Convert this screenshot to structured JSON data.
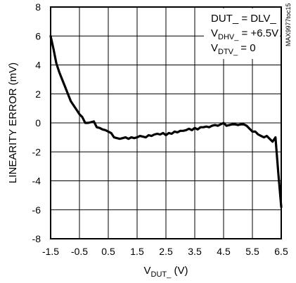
{
  "chart_data": {
    "type": "line",
    "xlabel": {
      "main": "V",
      "sub": "DUT_",
      "unit": " (V)"
    },
    "ylabel": "LINEARITY ERROR (mV)",
    "xlim": [
      -1.5,
      6.5
    ],
    "ylim": [
      -8,
      8
    ],
    "x_ticks": [
      "-1.5",
      "-0.5",
      "0.5",
      "1.5",
      "2.5",
      "3.5",
      "4.5",
      "5.5",
      "6.5"
    ],
    "y_ticks": [
      "8",
      "6",
      "4",
      "2",
      "0",
      "-2",
      "-4",
      "-6",
      "-8"
    ],
    "grid": true,
    "annotations": [
      {
        "main": "DUT_ = DLV_",
        "sub": "",
        "rest": ""
      },
      {
        "main": "V",
        "sub": "DHV_",
        "rest": " = +6.5V"
      },
      {
        "main": "V",
        "sub": "DTV_",
        "rest": " = 0"
      }
    ],
    "figure_id": "MAX9977toc15",
    "series": [
      {
        "x": [
          -1.5,
          -1.4,
          -1.3,
          -1.2,
          -1.1,
          -1.0,
          -0.9,
          -0.8,
          -0.7,
          -0.6,
          -0.5,
          -0.4,
          -0.3,
          -0.2,
          -0.1,
          0.0,
          0.1,
          0.2,
          0.3,
          0.4,
          0.5,
          0.6,
          0.7,
          0.8,
          0.9,
          1.0,
          1.1,
          1.2,
          1.3,
          1.4,
          1.5,
          1.6,
          1.7,
          1.8,
          1.9,
          2.0,
          2.1,
          2.2,
          2.3,
          2.4,
          2.5,
          2.6,
          2.7,
          2.8,
          2.9,
          3.0,
          3.1,
          3.2,
          3.3,
          3.4,
          3.5,
          3.6,
          3.7,
          3.8,
          3.9,
          4.0,
          4.1,
          4.2,
          4.3,
          4.4,
          4.5,
          4.6,
          4.7,
          4.8,
          4.9,
          5.0,
          5.1,
          5.2,
          5.3,
          5.4,
          5.5,
          5.6,
          5.7,
          5.8,
          5.9,
          6.0,
          6.1,
          6.2,
          6.3,
          6.4,
          6.5
        ],
        "y": [
          6.0,
          5.1,
          4.1,
          3.5,
          3.0,
          2.5,
          2.0,
          1.5,
          1.2,
          0.9,
          0.6,
          0.4,
          0.0,
          0.0,
          0.05,
          0.1,
          -0.3,
          -0.35,
          -0.45,
          -0.5,
          -0.6,
          -0.7,
          -1.0,
          -1.05,
          -1.1,
          -1.05,
          -1.0,
          -1.1,
          -1.0,
          -1.05,
          -1.0,
          -0.9,
          -0.95,
          -1.0,
          -0.85,
          -0.9,
          -0.8,
          -0.75,
          -0.8,
          -0.7,
          -0.85,
          -0.7,
          -0.75,
          -0.6,
          -0.65,
          -0.55,
          -0.55,
          -0.5,
          -0.4,
          -0.5,
          -0.35,
          -0.45,
          -0.3,
          -0.3,
          -0.25,
          -0.3,
          -0.2,
          -0.15,
          -0.2,
          -0.1,
          0.0,
          -0.2,
          -0.15,
          -0.1,
          -0.1,
          -0.15,
          -0.1,
          -0.1,
          -0.2,
          -0.4,
          -0.6,
          -0.6,
          -0.8,
          -0.9,
          -1.0,
          -0.9,
          -1.1,
          -1.3,
          -1.0,
          -3.5,
          -5.8
        ]
      }
    ]
  }
}
